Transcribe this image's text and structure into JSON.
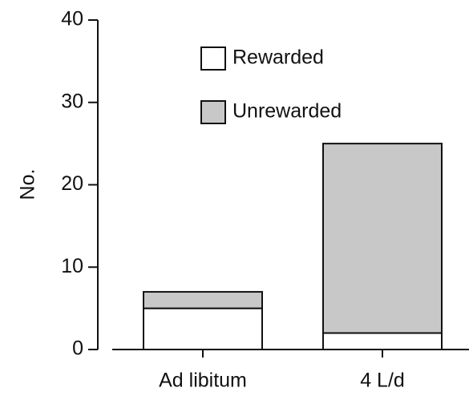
{
  "chart_data": {
    "type": "stacked_bar",
    "y_label": "No.",
    "categories": [
      "Ad libitum",
      "4 L/d"
    ],
    "series": [
      {
        "name": "Rewarded",
        "color": "#ffffff",
        "values": [
          5,
          2
        ]
      },
      {
        "name": "Unrewarded",
        "color": "#c8c8c8",
        "values": [
          2,
          23
        ]
      }
    ],
    "ylim": [
      0,
      40
    ],
    "yticks": [
      0,
      10,
      20,
      30,
      40
    ],
    "grid": false
  }
}
